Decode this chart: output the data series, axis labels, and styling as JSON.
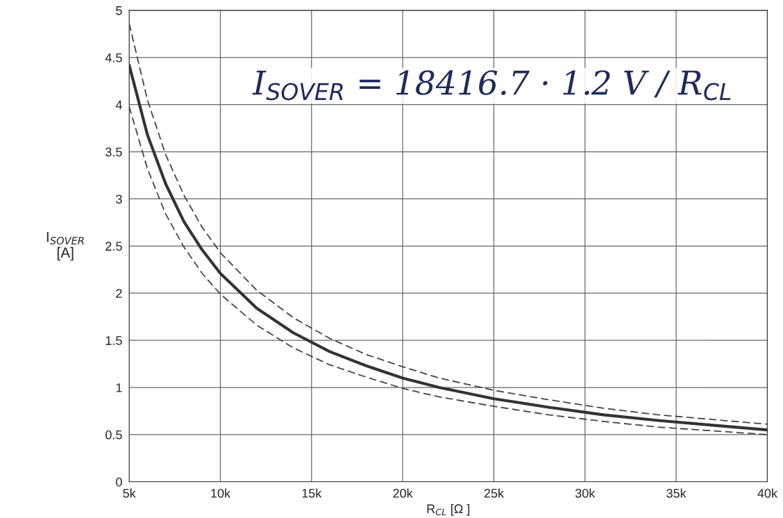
{
  "chart_data": {
    "type": "line",
    "xlabel": "R$_{CL}$ [Ω ]",
    "ylabel": "I$_{SOVER}$\n[A]",
    "x": [
      5000,
      6000,
      7000,
      8000,
      9000,
      10000,
      12000,
      14000,
      16000,
      18000,
      20000,
      22000,
      25000,
      28000,
      31000,
      34000,
      37000,
      40000
    ],
    "series": [
      {
        "color": "#333333",
        "line_style": "solid",
        "values": [
          4.42,
          3.68,
          3.16,
          2.76,
          2.46,
          2.21,
          1.84,
          1.58,
          1.38,
          1.23,
          1.1,
          1.0,
          0.88,
          0.79,
          0.71,
          0.65,
          0.6,
          0.55
        ]
      },
      {
        "color": "#444444",
        "line_style": "dashed",
        "values": [
          4.86,
          4.05,
          3.47,
          3.04,
          2.7,
          2.43,
          2.03,
          1.74,
          1.52,
          1.35,
          1.22,
          1.1,
          0.97,
          0.87,
          0.78,
          0.71,
          0.66,
          0.61
        ]
      },
      {
        "color": "#444444",
        "line_style": "dashed",
        "values": [
          3.98,
          3.32,
          2.84,
          2.49,
          2.21,
          1.99,
          1.66,
          1.42,
          1.24,
          1.11,
          0.99,
          0.9,
          0.8,
          0.71,
          0.64,
          0.58,
          0.54,
          0.5
        ]
      }
    ],
    "xlim": [
      5000,
      40000
    ],
    "xticks": [
      {
        "value": 5000,
        "label": "5k"
      },
      {
        "value": 10000,
        "label": "10k"
      },
      {
        "value": 15000,
        "label": "15k"
      },
      {
        "value": 20000,
        "label": "20k"
      },
      {
        "value": 25000,
        "label": "25k"
      },
      {
        "value": 30000,
        "label": "30k"
      },
      {
        "value": 35000,
        "label": "35k"
      },
      {
        "value": 40000,
        "label": "40k"
      }
    ],
    "ylim": [
      0,
      5
    ],
    "yticks": [
      0,
      0.5,
      1,
      1.5,
      2,
      2.5,
      3,
      3.5,
      4,
      4.5,
      5
    ],
    "grid": true,
    "annotations": [
      "I$_{SOVER}$ = 18416.7 · 1.2 V / R$_{CL}$"
    ]
  }
}
